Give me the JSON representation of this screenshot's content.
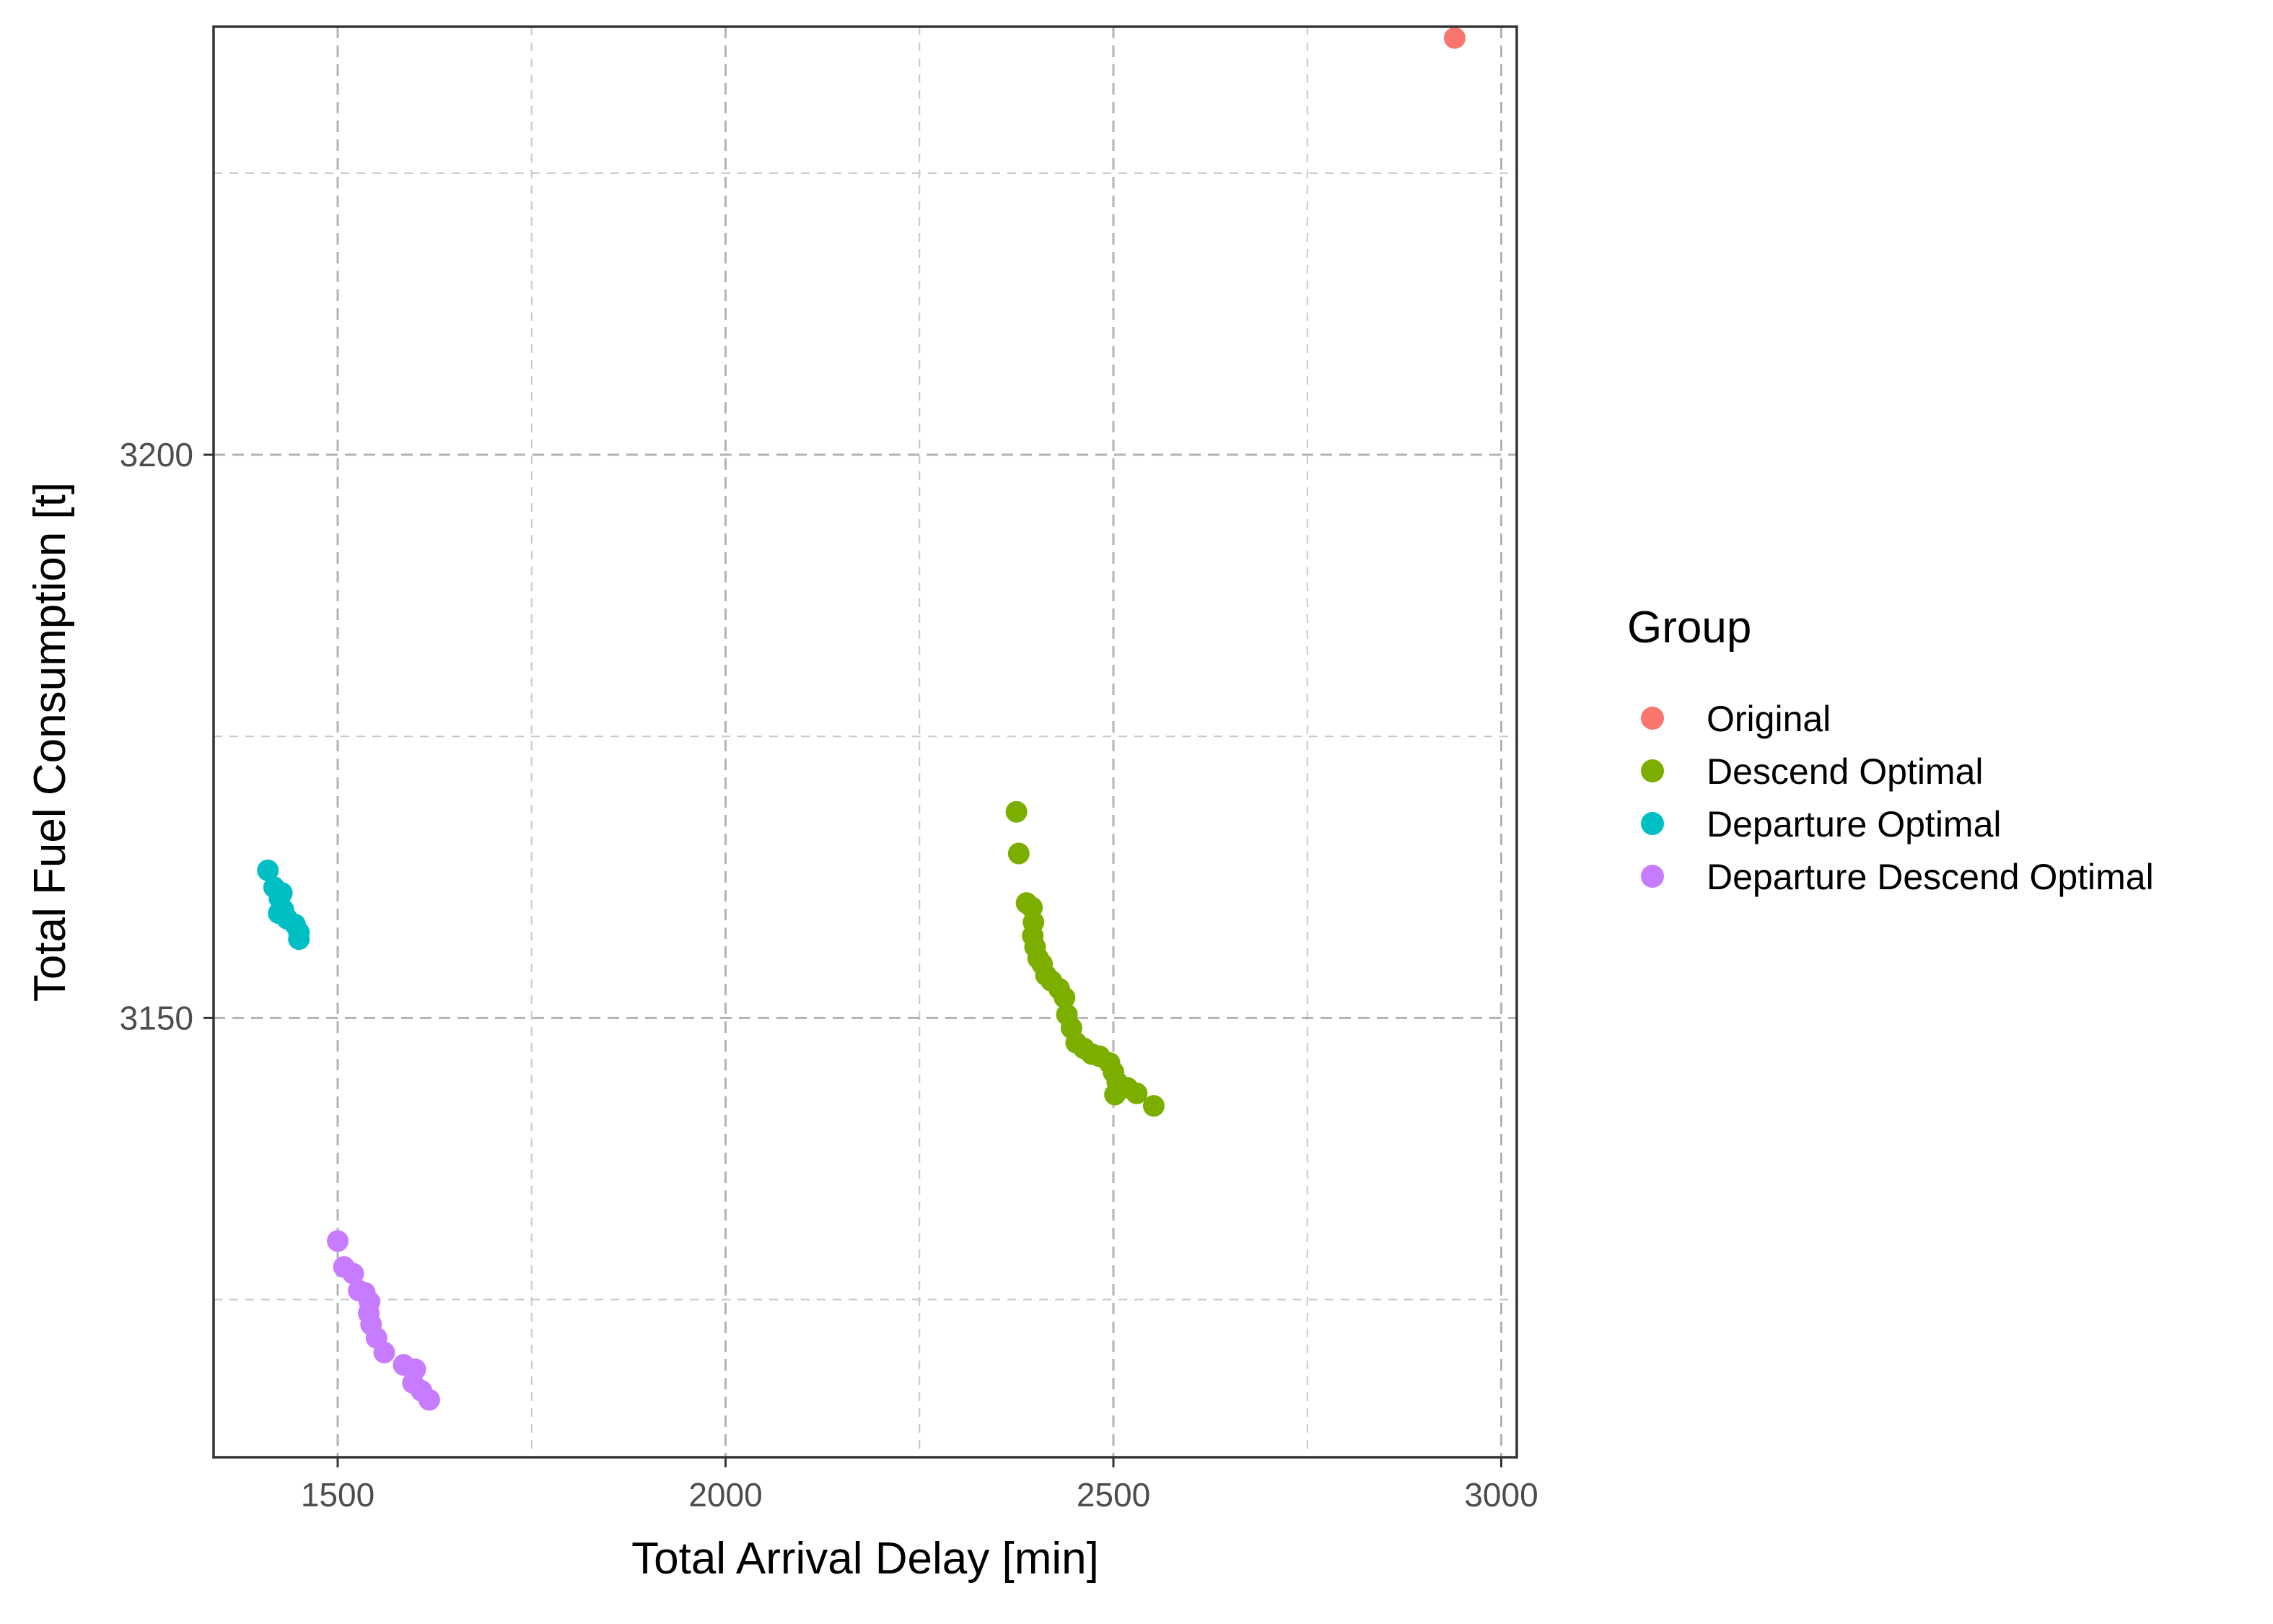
{
  "chart_data": {
    "type": "scatter",
    "xlabel": "Total Arrival Delay [min]",
    "ylabel": "Total Fuel Consumption [t]",
    "xlim": [
      1340,
      3020
    ],
    "ylim": [
      3111,
      3238
    ],
    "x_ticks": [
      1500,
      2000,
      2500,
      3000
    ],
    "x_tick_labels": [
      "1500",
      "2000",
      "2500",
      "3000"
    ],
    "x_minor_ticks": [
      1750,
      2250,
      2750
    ],
    "y_ticks": [
      3150,
      3200
    ],
    "y_tick_labels": [
      "3150",
      "3200"
    ],
    "y_minor_ticks": [
      3125,
      3175,
      3225
    ],
    "grid": true,
    "legend": {
      "title": "Group",
      "position": "right"
    },
    "series": [
      {
        "name": "Original",
        "color": "#F8766D",
        "points": [
          [
            2940,
            3237
          ]
        ]
      },
      {
        "name": "Descend Optimal",
        "color": "#7CAE00",
        "points": [
          [
            2375,
            3168.3
          ],
          [
            2378,
            3164.6
          ],
          [
            2388,
            3160.2
          ],
          [
            2395,
            3159.8
          ],
          [
            2397,
            3158.5
          ],
          [
            2396,
            3157.3
          ],
          [
            2399,
            3156.3
          ],
          [
            2403,
            3155.3
          ],
          [
            2408,
            3154.8
          ],
          [
            2413,
            3153.8
          ],
          [
            2420,
            3153.3
          ],
          [
            2430,
            3152.6
          ],
          [
            2437,
            3151.8
          ],
          [
            2440,
            3150.3
          ],
          [
            2446,
            3149.1
          ],
          [
            2452,
            3147.8
          ],
          [
            2462,
            3147.3
          ],
          [
            2472,
            3146.8
          ],
          [
            2482,
            3146.6
          ],
          [
            2495,
            3146.0
          ],
          [
            2500,
            3145.2
          ],
          [
            2505,
            3144.3
          ],
          [
            2518,
            3143.8
          ],
          [
            2530,
            3143.3
          ],
          [
            2552,
            3142.2
          ],
          [
            2502,
            3143.2
          ]
        ]
      },
      {
        "name": "Departure Optimal",
        "color": "#00BFC4",
        "points": [
          [
            1410,
            3163.1
          ],
          [
            1418,
            3161.6
          ],
          [
            1428,
            3161.1
          ],
          [
            1425,
            3160.6
          ],
          [
            1430,
            3159.6
          ],
          [
            1424,
            3159.3
          ],
          [
            1435,
            3158.8
          ],
          [
            1445,
            3158.3
          ],
          [
            1450,
            3157.6
          ],
          [
            1450,
            3157.0
          ]
        ]
      },
      {
        "name": "Departure Descend Optimal",
        "color": "#C77CFF",
        "points": [
          [
            1500,
            3130.2
          ],
          [
            1508,
            3127.9
          ],
          [
            1520,
            3127.3
          ],
          [
            1527,
            3125.8
          ],
          [
            1535,
            3125.6
          ],
          [
            1541,
            3124.8
          ],
          [
            1540,
            3123.8
          ],
          [
            1543,
            3122.8
          ],
          [
            1550,
            3121.6
          ],
          [
            1560,
            3120.3
          ],
          [
            1585,
            3119.2
          ],
          [
            1600,
            3118.8
          ],
          [
            1597,
            3117.6
          ],
          [
            1608,
            3116.9
          ],
          [
            1618,
            3116.1
          ]
        ]
      }
    ]
  }
}
